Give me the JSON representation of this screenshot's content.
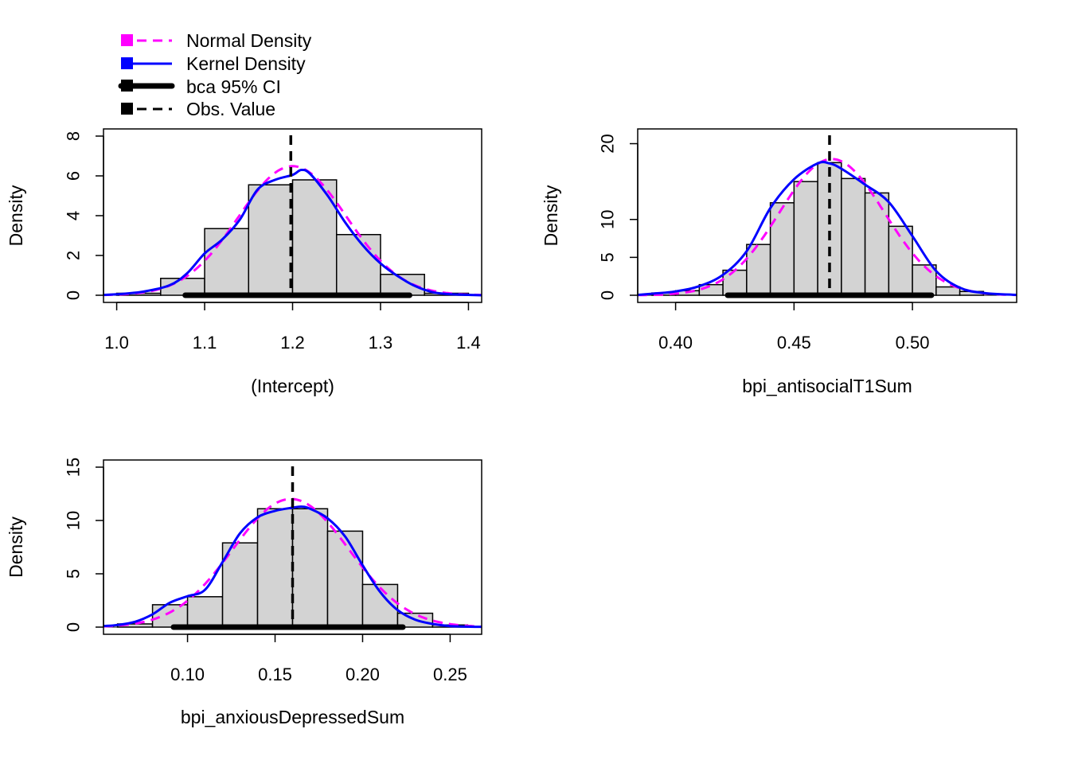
{
  "legend": {
    "items": [
      {
        "label": "Normal Density",
        "color": "#FF00FF",
        "style": "dashed"
      },
      {
        "label": "Kernel Density",
        "color": "#0000FF",
        "style": "solid"
      },
      {
        "label": "bca 95% CI",
        "color": "#000000",
        "style": "thick"
      },
      {
        "label": "Obs. Value",
        "color": "#000000",
        "style": "dashed"
      }
    ]
  },
  "colors": {
    "bar_fill": "#D3D3D3",
    "bar_stroke": "#000000",
    "normal": "#FF00FF",
    "kernel": "#0000FF",
    "ci": "#000000",
    "obs": "#000000"
  },
  "chart_data": [
    {
      "type": "bar",
      "xlabel": "(Intercept)",
      "ylabel": "Density",
      "xlim": [
        0.985,
        1.415
      ],
      "ylim": [
        0,
        8
      ],
      "xticks": [
        "1.0",
        "1.1",
        "1.2",
        "1.3",
        "1.4"
      ],
      "yticks": [
        "0",
        "2",
        "4",
        "6",
        "8"
      ],
      "bins": [
        {
          "start": 1.0,
          "end": 1.05,
          "density": 0.1
        },
        {
          "start": 1.05,
          "end": 1.1,
          "density": 0.85
        },
        {
          "start": 1.1,
          "end": 1.15,
          "density": 3.35
        },
        {
          "start": 1.15,
          "end": 1.2,
          "density": 5.55
        },
        {
          "start": 1.2,
          "end": 1.25,
          "density": 5.8
        },
        {
          "start": 1.25,
          "end": 1.3,
          "density": 3.05
        },
        {
          "start": 1.3,
          "end": 1.35,
          "density": 1.05
        },
        {
          "start": 1.35,
          "end": 1.4,
          "density": 0.1
        }
      ],
      "normal_density": {
        "mean": 1.2,
        "sd": 0.0615
      },
      "kernel_density": {
        "x": [
          0.985,
          1.0,
          1.03,
          1.06,
          1.08,
          1.1,
          1.12,
          1.14,
          1.16,
          1.18,
          1.2,
          1.21,
          1.22,
          1.24,
          1.26,
          1.28,
          1.3,
          1.32,
          1.34,
          1.36,
          1.38,
          1.4,
          1.415
        ],
        "y": [
          0.02,
          0.05,
          0.18,
          0.5,
          1.1,
          2.1,
          2.8,
          3.8,
          5.3,
          5.8,
          6.05,
          6.3,
          6.1,
          5.0,
          3.65,
          2.5,
          1.6,
          0.95,
          0.45,
          0.15,
          0.05,
          0.02,
          0.0
        ]
      },
      "ci": [
        1.078,
        1.333
      ],
      "obs_value": 1.198
    },
    {
      "type": "bar",
      "xlabel": "bpi_antisocialT1Sum",
      "ylabel": "Density",
      "xlim": [
        0.384,
        0.544
      ],
      "ylim": [
        0,
        21
      ],
      "xticks": [
        "0.40",
        "0.45",
        "0.50"
      ],
      "yticks": [
        "0",
        "5",
        "10",
        "20"
      ],
      "bins": [
        {
          "start": 0.39,
          "end": 0.4,
          "density": 0.3
        },
        {
          "start": 0.4,
          "end": 0.41,
          "density": 0.6
        },
        {
          "start": 0.41,
          "end": 0.42,
          "density": 1.4
        },
        {
          "start": 0.42,
          "end": 0.43,
          "density": 3.3
        },
        {
          "start": 0.43,
          "end": 0.44,
          "density": 6.7
        },
        {
          "start": 0.44,
          "end": 0.45,
          "density": 12.2
        },
        {
          "start": 0.45,
          "end": 0.46,
          "density": 15.0
        },
        {
          "start": 0.46,
          "end": 0.47,
          "density": 17.5
        },
        {
          "start": 0.47,
          "end": 0.48,
          "density": 15.4
        },
        {
          "start": 0.48,
          "end": 0.49,
          "density": 13.5
        },
        {
          "start": 0.49,
          "end": 0.5,
          "density": 9.1
        },
        {
          "start": 0.5,
          "end": 0.51,
          "density": 4.0
        },
        {
          "start": 0.51,
          "end": 0.52,
          "density": 1.1
        },
        {
          "start": 0.52,
          "end": 0.53,
          "density": 0.5
        }
      ],
      "normal_density": {
        "mean": 0.466,
        "sd": 0.0222
      },
      "kernel_density": {
        "x": [
          0.384,
          0.39,
          0.4,
          0.41,
          0.42,
          0.43,
          0.44,
          0.45,
          0.46,
          0.465,
          0.47,
          0.48,
          0.49,
          0.5,
          0.51,
          0.52,
          0.53,
          0.544
        ],
        "y": [
          0.05,
          0.2,
          0.5,
          1.2,
          2.7,
          5.8,
          11.5,
          15.3,
          17.4,
          17.4,
          16.7,
          14.6,
          12.3,
          7.8,
          3.2,
          1.0,
          0.3,
          0.05
        ]
      },
      "ci": [
        0.422,
        0.508
      ],
      "obs_value": 0.465
    },
    {
      "type": "bar",
      "xlabel": "bpi_anxiousDepressedSum",
      "ylabel": "Density",
      "xlim": [
        0.052,
        0.268
      ],
      "ylim": [
        0,
        15
      ],
      "xticks": [
        "0.10",
        "0.15",
        "0.20",
        "0.25"
      ],
      "yticks": [
        "0",
        "5",
        "10",
        "15"
      ],
      "bins": [
        {
          "start": 0.06,
          "end": 0.08,
          "density": 0.3
        },
        {
          "start": 0.08,
          "end": 0.1,
          "density": 2.1
        },
        {
          "start": 0.1,
          "end": 0.12,
          "density": 2.85
        },
        {
          "start": 0.12,
          "end": 0.14,
          "density": 7.9
        },
        {
          "start": 0.14,
          "end": 0.16,
          "density": 11.1
        },
        {
          "start": 0.16,
          "end": 0.18,
          "density": 11.1
        },
        {
          "start": 0.18,
          "end": 0.2,
          "density": 9.0
        },
        {
          "start": 0.2,
          "end": 0.22,
          "density": 4.0
        },
        {
          "start": 0.22,
          "end": 0.24,
          "density": 1.3
        },
        {
          "start": 0.24,
          "end": 0.26,
          "density": 0.2
        }
      ],
      "normal_density": {
        "mean": 0.159,
        "sd": 0.0332
      },
      "kernel_density": {
        "x": [
          0.052,
          0.06,
          0.07,
          0.08,
          0.09,
          0.1,
          0.11,
          0.12,
          0.13,
          0.14,
          0.15,
          0.16,
          0.165,
          0.17,
          0.18,
          0.19,
          0.2,
          0.21,
          0.22,
          0.23,
          0.24,
          0.25,
          0.268
        ],
        "y": [
          0.1,
          0.2,
          0.5,
          1.2,
          2.3,
          2.9,
          3.5,
          6.1,
          8.8,
          10.3,
          10.9,
          11.2,
          11.3,
          11.1,
          10.2,
          8.5,
          5.8,
          3.3,
          1.6,
          0.7,
          0.3,
          0.1,
          0.02
        ]
      },
      "ci": [
        0.092,
        0.223
      ],
      "obs_value": 0.16
    }
  ]
}
